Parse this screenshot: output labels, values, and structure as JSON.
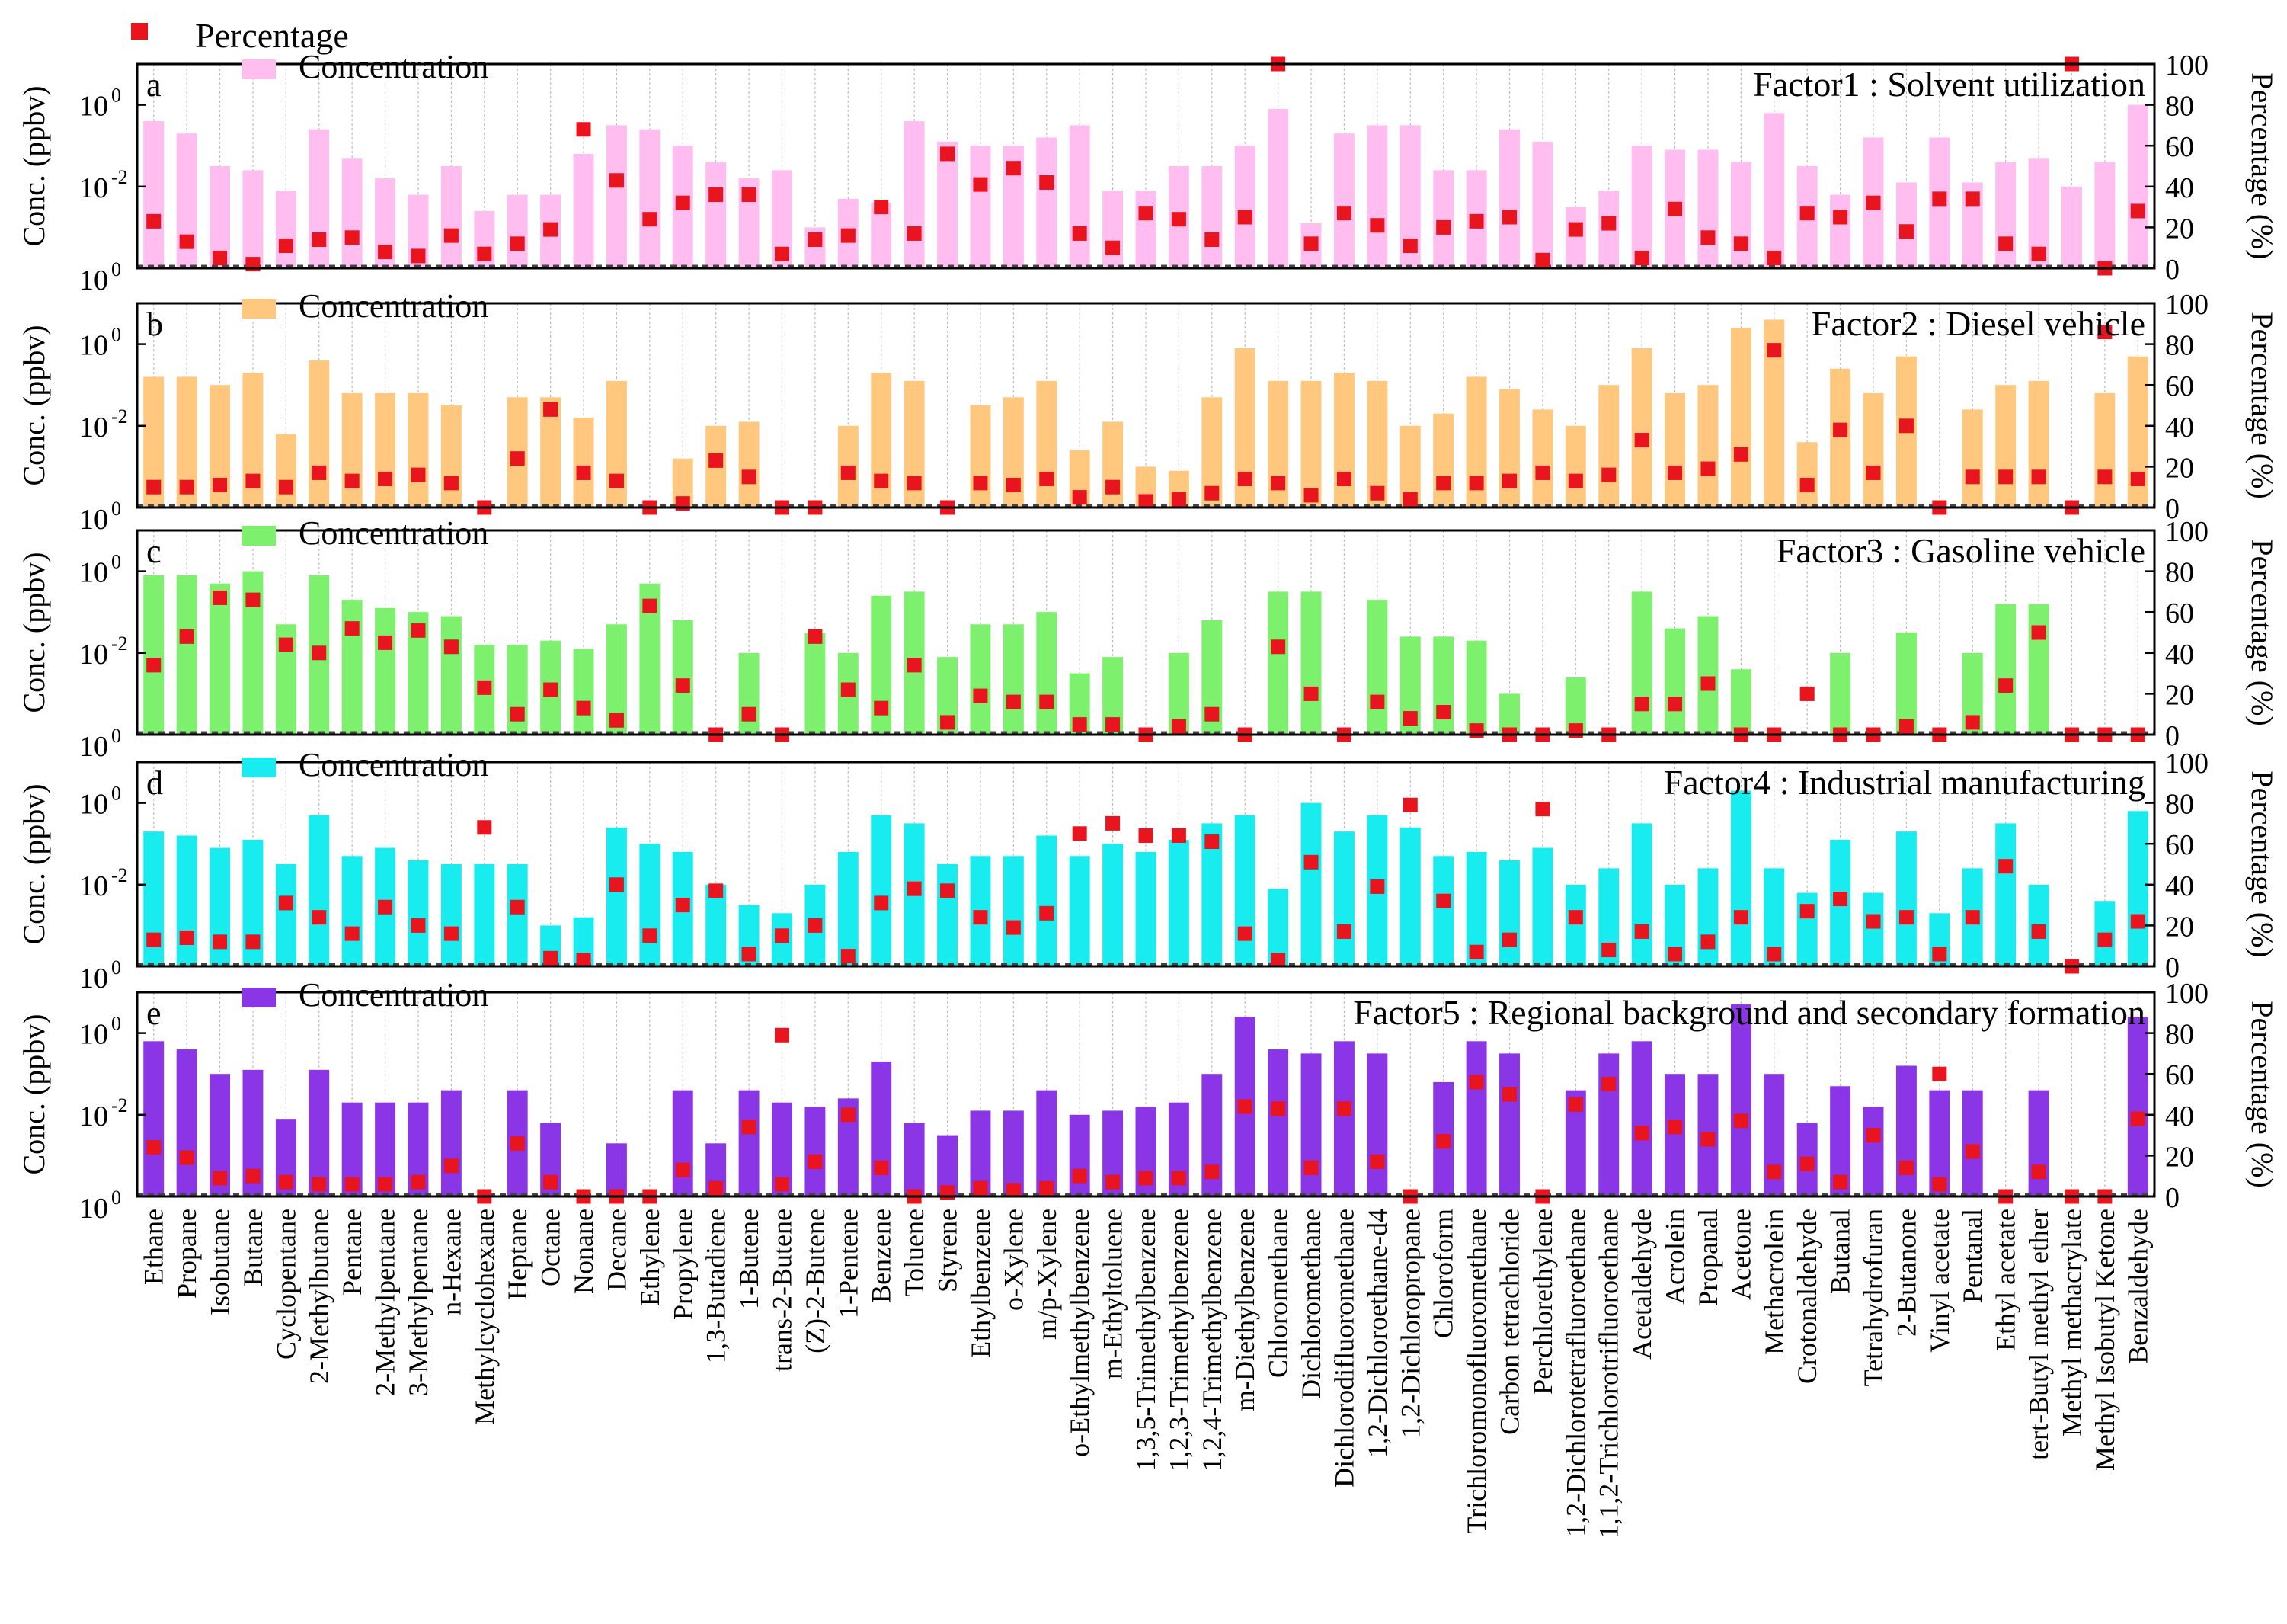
{
  "legend": {
    "percentage_label": "Percentage",
    "concentration_label": "Concentration"
  },
  "axes": {
    "left_label": "Conc. (ppbv)",
    "right_label": "Percentage (%)"
  },
  "colors": {
    "marker": "#e8141e",
    "panel_a": "#ffbdf0",
    "panel_b": "#ffc87e",
    "panel_c": "#7df06e",
    "panel_d": "#19ecee",
    "panel_e": "#8a35e6"
  },
  "chart_data": {
    "type": "bar",
    "categories": [
      "Ethane",
      "Propane",
      "Isobutane",
      "Butane",
      "Cyclopentane",
      "2-Methylbutane",
      "Pentane",
      "2-Methylpentane",
      "3-Methylpentane",
      "n-Hexane",
      "Methylcyclohexane",
      "Heptane",
      "Octane",
      "Nonane",
      "Decane",
      "Ethylene",
      "Propylene",
      "1,3-Butadiene",
      "1-Butene",
      "trans-2-Butene",
      "(Z)-2-Butene",
      "1-Pentene",
      "Benzene",
      "Toluene",
      "Styrene",
      "Ethylbenzene",
      "o-Xylene",
      "m/p-Xylene",
      "o-Ethylmethylbenzene",
      "m-Ethyltoluene",
      "1,3,5-Trimethylbenzene",
      "1,2,3-Trimethylbenzene",
      "1,2,4-Trimethylbenzene",
      "m-Diethylbenzene",
      "Chloromethane",
      "Dichloromethane",
      "Dichlorodifluoromethane",
      "1,2-Dichloroethane-d4",
      "1,2-Dichloropropane",
      "Chloroform",
      "Trichloromonofluoromethane",
      "Carbon tetrachloride",
      "Perchlorethylene",
      "1,2-Dichlorotetrafluoroethane",
      "1,1,2-Trichlorotrifluoroethane",
      "Acetaldehyde",
      "Acrolein",
      "Propanal",
      "Acetone",
      "Methacrolein",
      "Crotonaldehyde",
      "Butanal",
      "Tetrahydrofuran",
      "2-Butanone",
      "Vinyl acetate",
      "Pentanal",
      "Ethyl acetate",
      "tert-Butyl methyl ether",
      "Methyl methacrylate",
      "Methyl Isobutyl Ketone",
      "Benzaldehyde"
    ],
    "left_axis": {
      "label": "Conc. (ppbv)",
      "scale": "log",
      "ylim_log10": [
        -4,
        1
      ],
      "ticks_log10": [
        0,
        -2,
        -4
      ]
    },
    "right_axis": {
      "label": "Percentage (%)",
      "ylim": [
        0,
        100
      ],
      "ticks": [
        0,
        20,
        40,
        60,
        80,
        100
      ]
    },
    "panels": [
      {
        "letter": "a",
        "title": "Factor1 : Solvent utilization",
        "color_key": "panel_a",
        "concentration_log10": [
          -0.4,
          -0.7,
          -1.5,
          -1.6,
          -2.1,
          -0.6,
          -1.3,
          -1.8,
          -2.2,
          -1.5,
          -2.6,
          -2.2,
          -2.2,
          -1.2,
          -0.5,
          -0.6,
          -1.0,
          -1.4,
          -1.8,
          -1.6,
          -3.0,
          -2.3,
          -2.4,
          -0.4,
          -0.9,
          -1.0,
          -1.0,
          -0.8,
          -0.5,
          -2.1,
          -2.1,
          -1.5,
          -1.5,
          -1.0,
          -0.1,
          -2.9,
          -0.7,
          -0.5,
          -0.5,
          -1.6,
          -1.6,
          -0.6,
          -0.9,
          -2.5,
          -2.1,
          -1.0,
          -1.1,
          -1.1,
          -1.4,
          -0.2,
          -1.5,
          -2.2,
          -0.8,
          -1.9,
          -0.8,
          -1.9,
          -1.4,
          -1.3,
          -2.0,
          -1.4,
          0.0
        ],
        "percentage": [
          23,
          13,
          5,
          2,
          11,
          14,
          15,
          8,
          6,
          16,
          7,
          12,
          19,
          68,
          43,
          24,
          32,
          36,
          36,
          7,
          14,
          16,
          30,
          17,
          56,
          41,
          49,
          42,
          17,
          10,
          27,
          24,
          14,
          25,
          100,
          12,
          27,
          21,
          11,
          20,
          23,
          25,
          4,
          19,
          22,
          5,
          29,
          15,
          12,
          5,
          27,
          25,
          32,
          18,
          34,
          34,
          12,
          7,
          100,
          0,
          28
        ]
      },
      {
        "letter": "b",
        "title": "Factor2 : Diesel vehicle",
        "color_key": "panel_b",
        "concentration_log10": [
          -0.8,
          -0.8,
          -1.0,
          -0.7,
          -2.2,
          -0.4,
          -1.2,
          -1.2,
          -1.2,
          -1.5,
          -5.0,
          -1.3,
          -1.3,
          -1.8,
          -0.9,
          -5.0,
          -2.8,
          -2.0,
          -1.9,
          -5.0,
          -5.0,
          -2.0,
          -0.7,
          -0.9,
          -5.0,
          -1.5,
          -1.3,
          -0.9,
          -2.6,
          -1.9,
          -3.0,
          -3.1,
          -1.3,
          -0.1,
          -0.9,
          -0.9,
          -0.7,
          -0.9,
          -2.0,
          -1.7,
          -0.8,
          -1.1,
          -1.6,
          -2.0,
          -1.0,
          -0.1,
          -1.2,
          -1.0,
          0.4,
          0.6,
          -2.4,
          -0.6,
          -1.2,
          -0.3,
          -5.0,
          -1.6,
          -1.0,
          -0.9,
          -5.0,
          -1.2,
          -0.3
        ],
        "percentage": [
          10,
          10,
          11,
          13,
          10,
          17,
          13,
          14,
          16,
          12,
          0,
          24,
          48,
          17,
          13,
          0,
          2,
          23,
          15,
          0,
          0,
          17,
          13,
          12,
          0,
          12,
          11,
          14,
          5,
          10,
          3,
          4,
          7,
          14,
          12,
          6,
          14,
          7,
          4,
          12,
          12,
          13,
          17,
          13,
          16,
          33,
          17,
          19,
          26,
          77,
          11,
          38,
          17,
          40,
          0,
          15,
          15,
          15,
          0,
          15,
          14
        ],
        "extra_markers": [
          {
            "index": 59,
            "percentage": 86
          }
        ]
      },
      {
        "letter": "c",
        "title": "Factor3 : Gasoline vehicle",
        "color_key": "panel_c",
        "concentration_log10": [
          -0.1,
          -0.1,
          -0.3,
          -0.0,
          -1.3,
          -0.1,
          -0.7,
          -0.9,
          -1.0,
          -1.1,
          -1.8,
          -1.8,
          -1.7,
          -1.9,
          -1.3,
          -0.3,
          -1.2,
          -5.0,
          -2.0,
          -5.0,
          -1.5,
          -2.0,
          -0.6,
          -0.5,
          -2.1,
          -1.3,
          -1.3,
          -1.0,
          -2.5,
          -2.1,
          -5.0,
          -2.0,
          -1.2,
          -5.0,
          -0.5,
          -0.5,
          -5.0,
          -0.7,
          -1.6,
          -1.6,
          -1.7,
          -3.0,
          -5.0,
          -2.6,
          -5.0,
          -0.5,
          -1.4,
          -1.1,
          -2.4,
          -5.0,
          -5.0,
          -2.0,
          -5.0,
          -1.5,
          -5.0,
          -2.0,
          -0.8,
          -0.8,
          -5.0,
          -5.0,
          -5.0
        ],
        "percentage": [
          34,
          48,
          67,
          66,
          44,
          40,
          52,
          45,
          51,
          43,
          23,
          10,
          22,
          13,
          7,
          63,
          24,
          0,
          10,
          0,
          48,
          22,
          13,
          34,
          6,
          19,
          16,
          16,
          5,
          5,
          0,
          4,
          10,
          0,
          43,
          20,
          0,
          16,
          8,
          11,
          2,
          0,
          0,
          2,
          0,
          15,
          15,
          25,
          0,
          0,
          20,
          0,
          0,
          4,
          0,
          6,
          24,
          50,
          0,
          0,
          0
        ]
      },
      {
        "letter": "d",
        "title": "Factor4 : Industrial manufacturing",
        "color_key": "panel_d",
        "concentration_log10": [
          -0.7,
          -0.8,
          -1.1,
          -0.9,
          -1.5,
          -0.3,
          -1.3,
          -1.1,
          -1.4,
          -1.5,
          -1.5,
          -1.5,
          -3.0,
          -2.8,
          -0.6,
          -1.0,
          -1.2,
          -2.0,
          -2.5,
          -2.7,
          -2.0,
          -1.2,
          -0.3,
          -0.5,
          -1.5,
          -1.3,
          -1.3,
          -0.8,
          -1.3,
          -1.0,
          -1.2,
          -0.9,
          -0.5,
          -0.3,
          -2.1,
          -0.0,
          -0.7,
          -0.3,
          -0.6,
          -1.3,
          -1.2,
          -1.4,
          -1.1,
          -2.0,
          -1.6,
          -0.5,
          -2.0,
          -1.6,
          0.3,
          -1.6,
          -2.2,
          -0.9,
          -2.2,
          -0.7,
          -2.7,
          -1.6,
          -0.5,
          -2.0,
          -5.0,
          -2.4,
          -0.2
        ],
        "percentage": [
          13,
          14,
          12,
          12,
          31,
          24,
          16,
          29,
          20,
          16,
          68,
          29,
          4,
          3,
          40,
          15,
          30,
          37,
          6,
          15,
          20,
          5,
          31,
          38,
          37,
          24,
          19,
          26,
          65,
          70,
          64,
          64,
          61,
          16,
          3,
          51,
          17,
          39,
          79,
          32,
          7,
          13,
          77,
          24,
          8,
          17,
          6,
          12,
          24,
          6,
          27,
          33,
          22,
          24,
          6,
          24,
          49,
          17,
          0,
          13,
          22
        ]
      },
      {
        "letter": "e",
        "title": "Factor5 : Regional background and secondary formation",
        "color_key": "panel_e",
        "concentration_log10": [
          -0.2,
          -0.4,
          -1.0,
          -0.9,
          -2.1,
          -0.9,
          -1.7,
          -1.7,
          -1.7,
          -1.4,
          -5.0,
          -1.4,
          -2.2,
          -5.0,
          -2.7,
          -5.0,
          -1.4,
          -2.7,
          -1.4,
          -1.7,
          -1.8,
          -1.6,
          -0.7,
          -2.2,
          -2.5,
          -1.9,
          -1.9,
          -1.4,
          -2.0,
          -1.9,
          -1.8,
          -1.7,
          -1.0,
          0.4,
          -0.4,
          -0.5,
          -0.2,
          -0.5,
          -5.0,
          -1.2,
          -0.2,
          -0.5,
          -5.0,
          -1.4,
          -0.5,
          -0.2,
          -1.0,
          -1.0,
          0.7,
          -1.0,
          -2.2,
          -1.3,
          -1.8,
          -0.8,
          -1.4,
          -1.4,
          -5.0,
          -1.4,
          -5.0,
          -5.0,
          0.4
        ],
        "percentage": [
          24,
          19,
          9,
          10,
          7,
          6,
          6,
          6,
          7,
          15,
          0,
          26,
          7,
          0,
          0,
          0,
          13,
          4,
          34,
          6,
          17,
          40,
          14,
          0,
          2,
          4,
          3,
          4,
          10,
          7,
          9,
          9,
          12,
          44,
          43,
          14,
          43,
          17,
          0,
          27,
          56,
          50,
          0,
          45,
          55,
          31,
          34,
          28,
          37,
          12,
          16,
          7,
          30,
          14,
          6,
          22,
          0,
          12,
          0,
          0,
          38
        ],
        "extra_markers": [
          {
            "index": 19,
            "percentage": 79
          },
          {
            "index": 54,
            "percentage": 60
          }
        ]
      }
    ]
  }
}
